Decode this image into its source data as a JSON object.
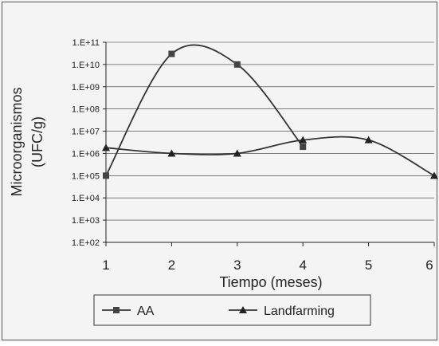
{
  "chart_data": {
    "type": "line",
    "title": "",
    "xlabel": "Tiempo (meses)",
    "ylabel_lines": [
      "Microorganismos",
      "(UFC/g)"
    ],
    "x": [
      1,
      2,
      3,
      4,
      5,
      6
    ],
    "x_tick_labels": [
      "1",
      "2",
      "3",
      "4",
      "5",
      "6"
    ],
    "xlim": [
      1,
      6
    ],
    "y_scale": "log",
    "ylim": [
      100,
      100000000000
    ],
    "y_tick_labels": [
      "1.E+02",
      "1.E+03",
      "1.E+04",
      "1.E+05",
      "1.E+06",
      "1.E+07",
      "1.E+08",
      "1.E+09",
      "1.E+10",
      "1.E+11"
    ],
    "grid": true,
    "legend_position": "bottom",
    "series": [
      {
        "name": "AA",
        "marker": "square",
        "x": [
          1,
          2,
          3,
          4
        ],
        "values": [
          100000,
          30000000000,
          10000000000,
          2000000
        ]
      },
      {
        "name": "Landfarming",
        "marker": "triangle",
        "x": [
          1,
          2,
          3,
          4,
          5,
          6
        ],
        "values": [
          1800000,
          1000000,
          1000000,
          4000000,
          4000000,
          100000
        ]
      }
    ]
  }
}
